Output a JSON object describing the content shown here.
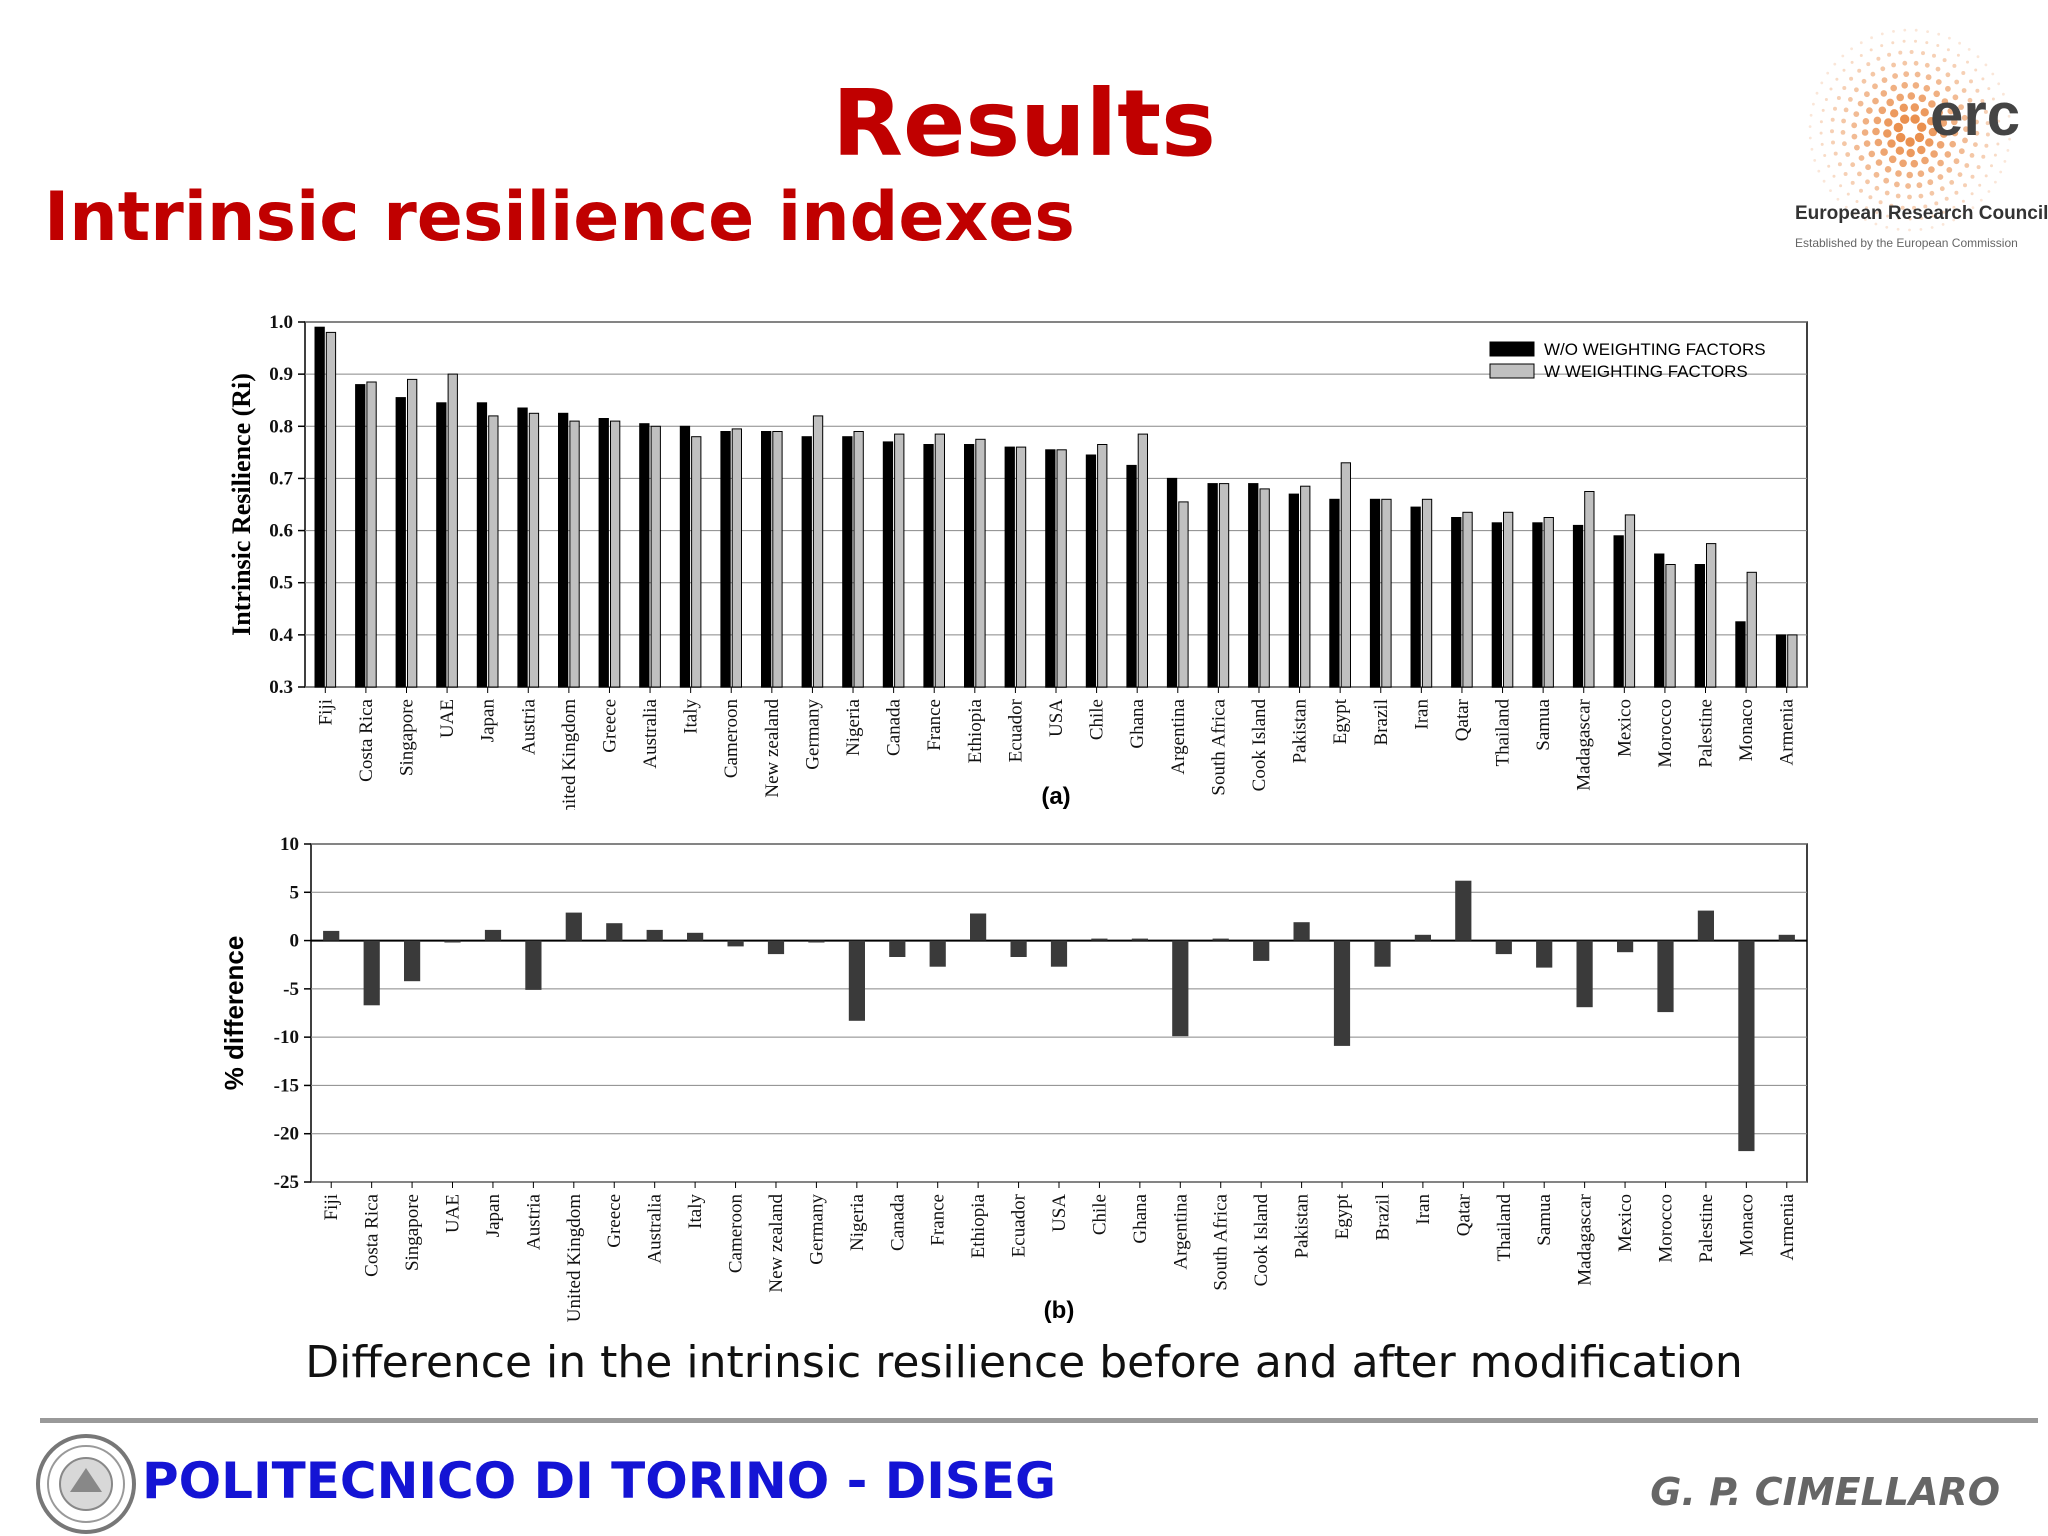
{
  "slide": {
    "title": "Results",
    "subtitle": "Intrinsic resilience indexes",
    "caption": "Difference in the intrinsic resilience before and after modification",
    "footer_left": "POLITECNICO DI TORINO - DISEG",
    "footer_right": "G. P. CIMELLARO",
    "logo": {
      "name": "erc",
      "org": "European Research Council",
      "tagline": "Established by the European Commission"
    },
    "seal_icon": "university-seal-icon"
  },
  "colors": {
    "title": "#c00000",
    "footer_left": "#1414d4",
    "bar_black": "#000000",
    "bar_gray": "#c0c0c0",
    "bar_diff": "#3a3a3a",
    "logo_dots": "#e8843c"
  },
  "chart_data": [
    {
      "type": "bar",
      "label": "(a)",
      "ylabel": "Intrinsic Resilience (Ri)",
      "ylim": [
        0.3,
        1.0
      ],
      "yticks": [
        0.3,
        0.4,
        0.5,
        0.6,
        0.7,
        0.8,
        0.9,
        1.0
      ],
      "grid": true,
      "legend_position": "top-right",
      "categories": [
        "Fiji",
        "Costa Rica",
        "Singapore",
        "UAE",
        "Japan",
        "Austria",
        "United Kingdom",
        "Greece",
        "Australia",
        "Italy",
        "Cameroon",
        "New zealand",
        "Germany",
        "Nigeria",
        "Canada",
        "France",
        "Ethiopia",
        "Ecuador",
        "USA",
        "Chile",
        "Ghana",
        "Argentina",
        "South Africa",
        "Cook Island",
        "Pakistan",
        "Egypt",
        "Brazil",
        "Iran",
        "Qatar",
        "Thailand",
        "Samua",
        "Madagascar",
        "Mexico",
        "Morocco",
        "Palestine",
        "Monaco",
        "Armenia"
      ],
      "series": [
        {
          "name": "W/O WEIGHTING FACTORS",
          "values": [
            0.99,
            0.88,
            0.855,
            0.845,
            0.845,
            0.835,
            0.825,
            0.815,
            0.805,
            0.8,
            0.79,
            0.79,
            0.78,
            0.78,
            0.77,
            0.765,
            0.765,
            0.76,
            0.755,
            0.745,
            0.725,
            0.7,
            0.69,
            0.69,
            0.67,
            0.66,
            0.66,
            0.645,
            0.625,
            0.615,
            0.615,
            0.61,
            0.59,
            0.555,
            0.535,
            0.425,
            0.4
          ]
        },
        {
          "name": "W WEIGHTING FACTORS",
          "values": [
            0.98,
            0.885,
            0.89,
            0.9,
            0.82,
            0.825,
            0.81,
            0.81,
            0.8,
            0.78,
            0.795,
            0.79,
            0.82,
            0.79,
            0.785,
            0.785,
            0.775,
            0.76,
            0.755,
            0.765,
            0.785,
            0.655,
            0.69,
            0.68,
            0.685,
            0.73,
            0.66,
            0.66,
            0.635,
            0.635,
            0.625,
            0.675,
            0.63,
            0.535,
            0.575,
            0.52,
            0.4
          ]
        }
      ]
    },
    {
      "type": "bar",
      "label": "(b)",
      "ylabel": "% difference",
      "ylim": [
        -25,
        10
      ],
      "yticks": [
        -25,
        -20,
        -15,
        -10,
        -5,
        0,
        5,
        10
      ],
      "grid": true,
      "categories": [
        "Fiji",
        "Costa Rica",
        "Singapore",
        "UAE",
        "Japan",
        "Austria",
        "United Kingdom",
        "Greece",
        "Australia",
        "Italy",
        "Cameroon",
        "New zealand",
        "Germany",
        "Nigeria",
        "Canada",
        "France",
        "Ethiopia",
        "Ecuador",
        "USA",
        "Chile",
        "Ghana",
        "Argentina",
        "South Africa",
        "Cook Island",
        "Pakistan",
        "Egypt",
        "Brazil",
        "Iran",
        "Qatar",
        "Thailand",
        "Samua",
        "Madagascar",
        "Mexico",
        "Morocco",
        "Palestine",
        "Monaco",
        "Armenia"
      ],
      "values": [
        1.0,
        -6.7,
        -4.2,
        -0.2,
        1.1,
        -5.1,
        2.9,
        1.8,
        1.1,
        0.8,
        -0.6,
        -1.4,
        -0.2,
        -8.3,
        -1.7,
        -2.7,
        2.8,
        -1.7,
        -2.7,
        0.2,
        0.2,
        -9.9,
        0.2,
        -2.1,
        1.9,
        -10.9,
        -2.7,
        0.6,
        6.2,
        -1.4,
        -2.8,
        -6.9,
        -1.2,
        -7.4,
        3.1,
        -21.8,
        0.6
      ]
    }
  ]
}
